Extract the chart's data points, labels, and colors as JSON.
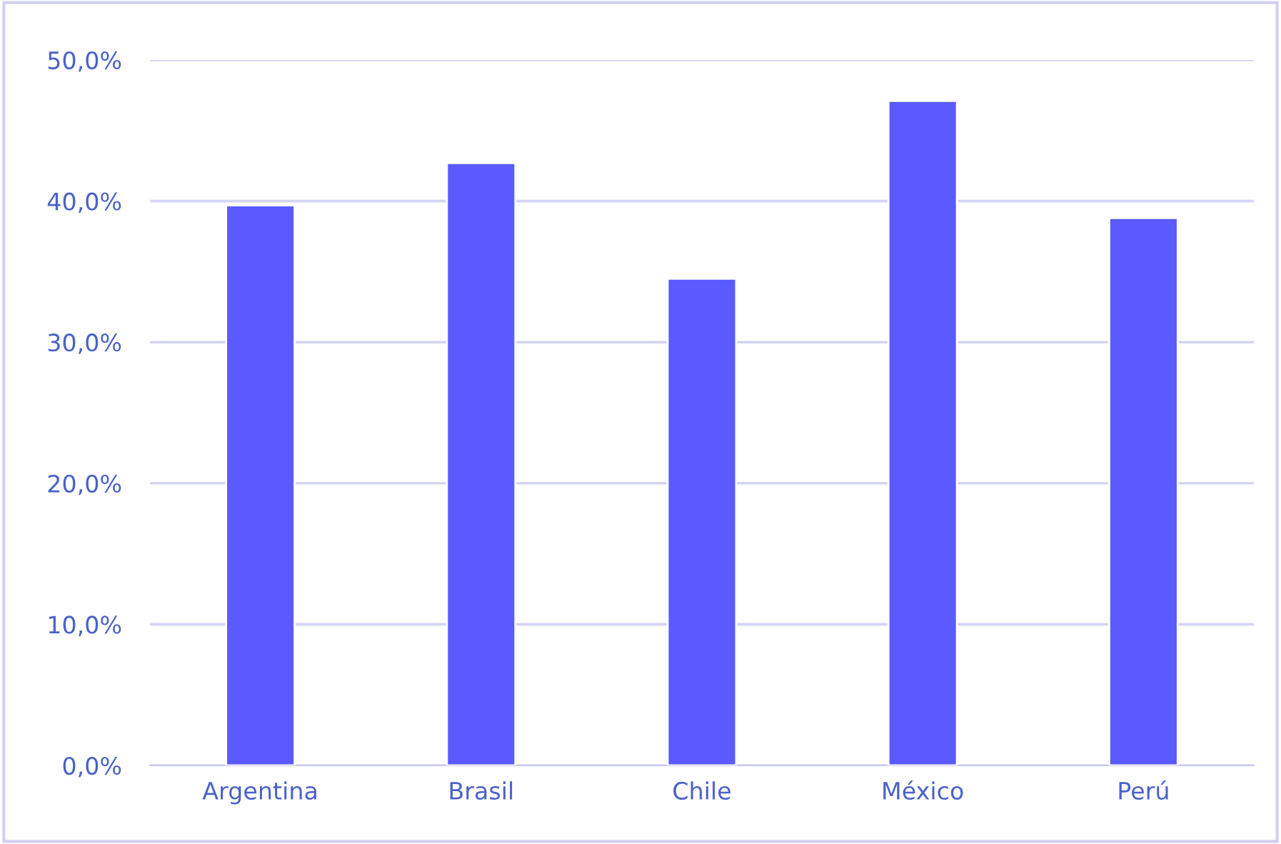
{
  "chart_data": {
    "type": "bar",
    "categories": [
      "Argentina",
      "Brasil",
      "Chile",
      "México",
      "Perú"
    ],
    "values": [
      39.7,
      42.7,
      34.5,
      47.1,
      38.8
    ],
    "color": "#5a5aff",
    "ylim": [
      0,
      50
    ],
    "yticks": [
      {
        "value": 0,
        "label": "0,0%"
      },
      {
        "value": 10,
        "label": "10,0%"
      },
      {
        "value": 20,
        "label": "20,0%"
      },
      {
        "value": 30,
        "label": "30,0%"
      },
      {
        "value": 40,
        "label": "40,0%"
      },
      {
        "value": 50,
        "label": "50,0%"
      }
    ],
    "grid": "y",
    "legend": false
  }
}
